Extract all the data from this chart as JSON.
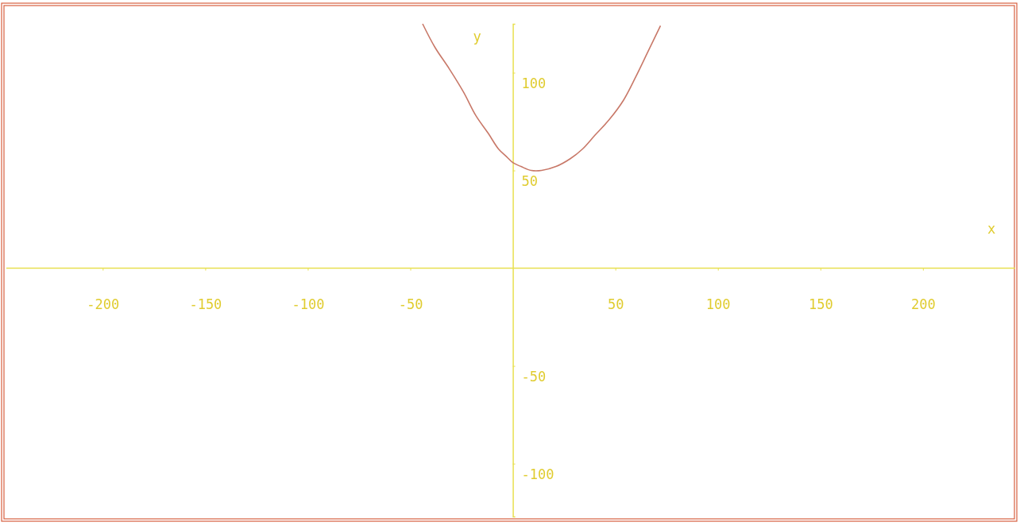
{
  "chart_data": {
    "type": "line",
    "xlabel": "x",
    "ylabel": "y",
    "xlim": [
      -247,
      245
    ],
    "ylim": [
      -127,
      125
    ],
    "xticks": [
      -200,
      -150,
      -100,
      -50,
      50,
      100,
      150,
      200
    ],
    "yticks": [
      -100,
      -50,
      50,
      100
    ],
    "series": [
      {
        "color": "#c87868",
        "x": [
          -44,
          -38,
          -31,
          -24,
          -18,
          -12,
          -7,
          -3,
          0,
          4,
          9,
          14,
          21,
          28,
          34,
          40,
          47,
          54,
          60,
          66,
          72
        ],
        "values": [
          125,
          113,
          102,
          90,
          78,
          69,
          61,
          57,
          54,
          52,
          50,
          50,
          52,
          56,
          61,
          68,
          76,
          86,
          98,
          111,
          124
        ]
      }
    ],
    "grid": false,
    "marker": "none",
    "line_style": "solid"
  }
}
